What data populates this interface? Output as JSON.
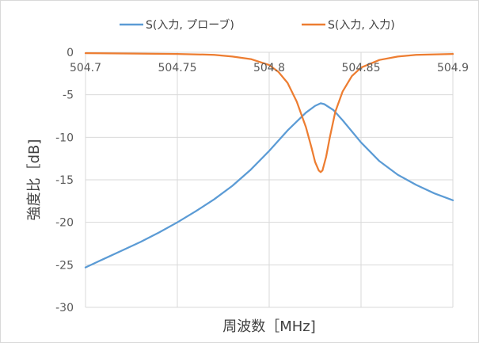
{
  "chart_data": {
    "type": "line",
    "title": "",
    "xlabel": "周波数［MHz]",
    "ylabel": "強度比［dB]",
    "xlim": [
      504.7,
      504.9
    ],
    "ylim": [
      -30,
      0
    ],
    "xticks": [
      "504.7",
      "504.75",
      "504.8",
      "504.85",
      "504.9"
    ],
    "yticks": [
      "0",
      "-5",
      "-10",
      "-15",
      "-20",
      "-25",
      "-30"
    ],
    "grid": true,
    "legend_position": "top",
    "series": [
      {
        "name": "S(入力, プローブ)",
        "color": "#5b9bd5",
        "x": [
          504.7,
          504.71,
          504.72,
          504.73,
          504.74,
          504.75,
          504.76,
          504.77,
          504.78,
          504.79,
          504.8,
          504.81,
          504.82,
          504.825,
          504.828,
          504.83,
          504.835,
          504.84,
          504.85,
          504.86,
          504.87,
          504.88,
          504.89,
          504.9
        ],
        "y": [
          -25.3,
          -24.3,
          -23.3,
          -22.3,
          -21.2,
          -20.0,
          -18.7,
          -17.3,
          -15.7,
          -13.8,
          -11.6,
          -9.2,
          -7.1,
          -6.3,
          -6.0,
          -6.1,
          -6.8,
          -8.0,
          -10.6,
          -12.8,
          -14.4,
          -15.6,
          -16.6,
          -17.4
        ]
      },
      {
        "name": "S(入力, 入力)",
        "color": "#ed7d31",
        "x": [
          504.7,
          504.75,
          504.77,
          504.78,
          504.79,
          504.8,
          504.805,
          504.81,
          504.815,
          504.82,
          504.823,
          504.825,
          504.827,
          504.828,
          504.829,
          504.831,
          504.833,
          504.836,
          504.84,
          504.845,
          504.85,
          504.86,
          504.87,
          504.88,
          504.9
        ],
        "y": [
          -0.1,
          -0.2,
          -0.3,
          -0.5,
          -0.8,
          -1.5,
          -2.3,
          -3.6,
          -5.8,
          -8.8,
          -11.2,
          -12.9,
          -13.9,
          -14.1,
          -13.9,
          -12.3,
          -10.0,
          -7.0,
          -4.6,
          -2.8,
          -1.8,
          -0.9,
          -0.5,
          -0.3,
          -0.2
        ]
      }
    ]
  }
}
